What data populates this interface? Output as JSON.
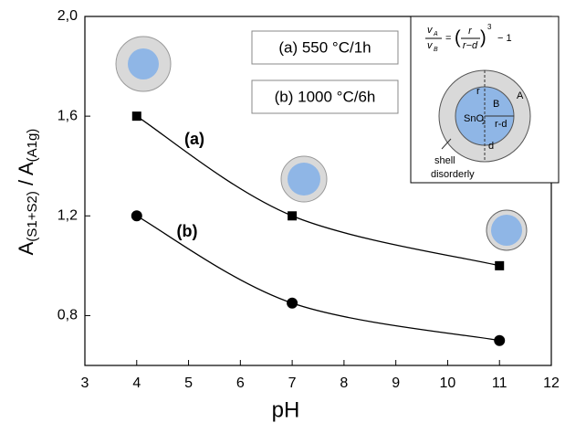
{
  "chart_data": {
    "type": "line",
    "xlabel": "pH",
    "ylabel": [
      {
        "text": "A"
      },
      {
        "text": "(S1+S2)",
        "sub": true
      },
      {
        "text": " / A"
      },
      {
        "text": "(A1g)",
        "sub": true
      }
    ],
    "xlim": [
      3,
      12
    ],
    "ylim": [
      0.6,
      2.0
    ],
    "xticks": [
      3,
      4,
      5,
      6,
      7,
      8,
      9,
      10,
      11,
      12
    ],
    "yticks": [
      {
        "value": 0.8,
        "label": "0,8"
      },
      {
        "value": 1.2,
        "label": "1,2"
      },
      {
        "value": 1.6,
        "label": "1,6"
      },
      {
        "value": 2.0,
        "label": "2,0"
      }
    ],
    "series": [
      {
        "name": "(a)",
        "marker": "square",
        "color": "#000000",
        "x": [
          4,
          7,
          11
        ],
        "values": [
          1.6,
          1.2,
          1.0
        ]
      },
      {
        "name": "(b)",
        "marker": "circle",
        "color": "#000000",
        "x": [
          4,
          7,
          11
        ],
        "values": [
          1.2,
          0.85,
          0.7
        ]
      }
    ],
    "annotations": [
      "(a) 550 °C/1h",
      "(b) 1000 °C/6h"
    ],
    "inset": {
      "formula": [
        "v",
        "A",
        "v",
        "B",
        "=",
        "r",
        "r−d",
        "3",
        "− 1"
      ],
      "labels": [
        "r",
        "A",
        "B",
        "SnO",
        "2",
        "r-d",
        "d",
        "shell",
        "disorderly"
      ]
    }
  }
}
